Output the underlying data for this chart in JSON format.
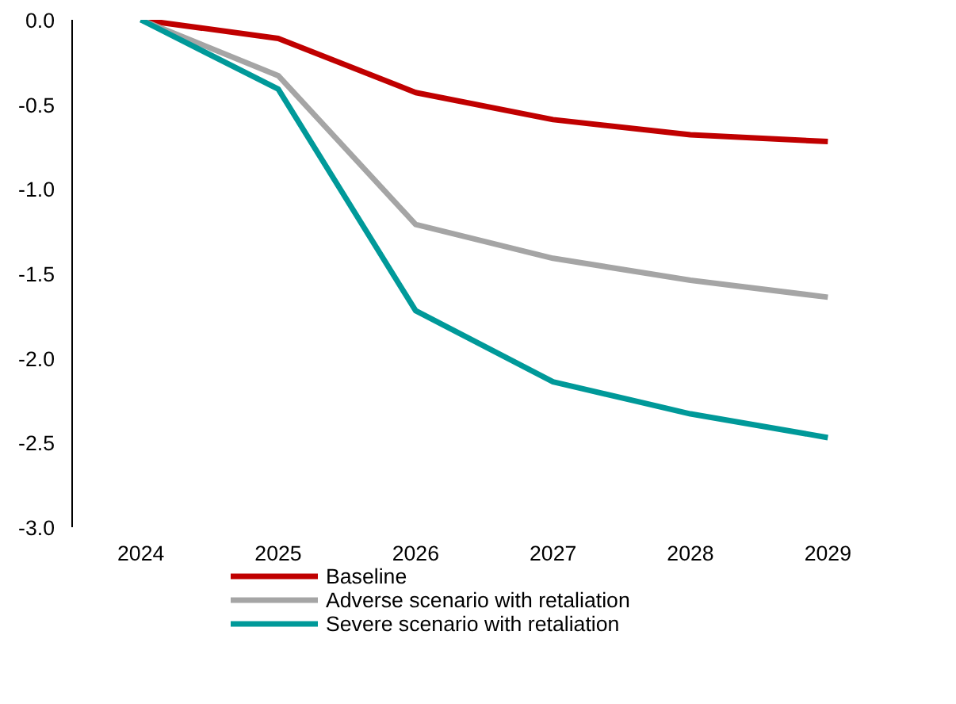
{
  "chart_data": {
    "type": "line",
    "categories": [
      "2024",
      "2025",
      "2026",
      "2027",
      "2028",
      "2029"
    ],
    "series": [
      {
        "name": "Baseline",
        "color": "#c00000",
        "values": [
          0,
          -0.11,
          -0.43,
          -0.59,
          -0.68,
          -0.72
        ]
      },
      {
        "name": "Adverse scenario with retaliation",
        "color": "#a5a5a5",
        "values": [
          0,
          -0.33,
          -1.21,
          -1.41,
          -1.54,
          -1.64
        ]
      },
      {
        "name": "Severe scenario with retaliation",
        "color": "#009999",
        "values": [
          0,
          -0.41,
          -1.72,
          -2.14,
          -2.33,
          -2.47
        ]
      }
    ],
    "ylim": [
      -3,
      0
    ],
    "yticks": [
      {
        "value": 0,
        "label": "0.0"
      },
      {
        "value": -0.5,
        "label": "-0.5"
      },
      {
        "value": -1,
        "label": "-1.0"
      },
      {
        "value": -1.5,
        "label": "-1.5"
      },
      {
        "value": -2,
        "label": "-2.0"
      },
      {
        "value": -2.5,
        "label": "-2.5"
      },
      {
        "value": -3,
        "label": "-3.0"
      }
    ],
    "grid": false,
    "legend": "bottom",
    "marker": "none",
    "line_style": "solid"
  }
}
